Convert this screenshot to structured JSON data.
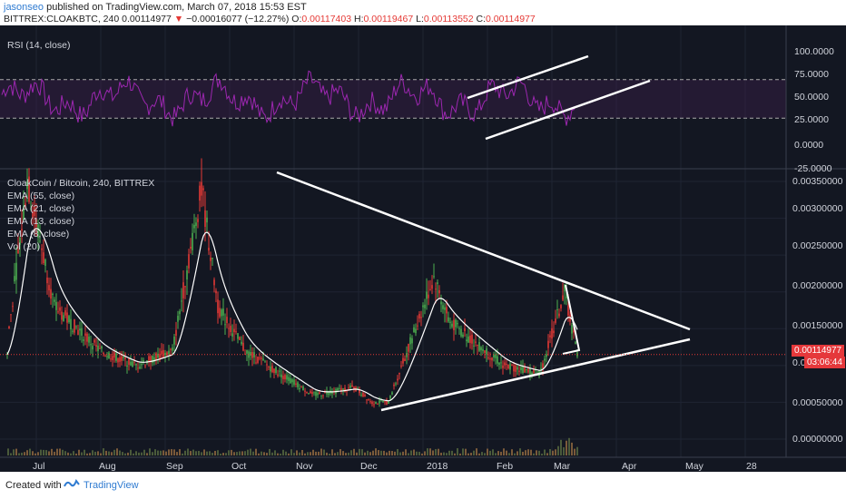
{
  "header": {
    "author": "jasonseo",
    "published_text": " published on TradingView.com, March 07, 2018 15:53 EST",
    "symbol": "BITTREX:CLOAKBTC, 240",
    "last": "0.00114977",
    "arrow": "▼",
    "change": "−0.00016077 (−12.27%)",
    "o_label": "O:",
    "o_val": "0.00117403",
    "h_label": "H:",
    "h_val": "0.00119467",
    "l_label": "L:",
    "l_val": "0.00113552",
    "c_label": "C:",
    "c_val": "0.00114977"
  },
  "rsi": {
    "label": "RSI (14, close)",
    "levels": [
      100,
      75,
      50,
      25,
      0,
      -25
    ],
    "tick_labels": [
      "100.0000",
      "75.0000",
      "50.0000",
      "25.0000",
      "0.0000",
      "-25.0000"
    ],
    "upper_band": 70,
    "lower_band": 30
  },
  "main": {
    "title": "CloakCoin / Bitcoin, 240, BITTREX",
    "legend": [
      "EMA (55, close)",
      "EMA (21, close)",
      "EMA (13, close)",
      "EMA (8, close)",
      "Vol (20)"
    ],
    "price_ticks": [
      "0.00350000",
      "0.00300000",
      "0.00250000",
      "0.00200000",
      "0.00150000",
      "0.00100000",
      "0.00050000",
      "0.00000000"
    ],
    "price_tick_values": [
      0.0035,
      0.003,
      0.0025,
      0.002,
      0.0015,
      0.001,
      0.0005,
      0.0
    ],
    "last_price_label": "0.00114977",
    "countdown_label": "03:06:44"
  },
  "x_labels": [
    "Jul",
    "Aug",
    "Sep",
    "Oct",
    "Nov",
    "Dec",
    "2018",
    "Feb",
    "Mar",
    "Apr",
    "May",
    "28"
  ],
  "colors": {
    "background": "#131722",
    "rsi_line": "#9c27b0",
    "bull": "#4caf50",
    "bear": "#e53935",
    "ema": "#ffffff",
    "trendline": "#ffffff",
    "price_line": "#e53935"
  },
  "chart_data": {
    "type": "candlestick",
    "title": "CloakCoin / Bitcoin, 240, BITTREX",
    "x_range": [
      "2018-07 (Jul)",
      "2018-05-28"
    ],
    "y_range": [
      0.0,
      0.0035
    ],
    "price_path_approx": [
      {
        "x": "Jul",
        "y": 0.0015
      },
      {
        "x": "early Jul",
        "y": 0.0035
      },
      {
        "x": "mid Jul",
        "y": 0.0018
      },
      {
        "x": "Aug",
        "y": 0.0012
      },
      {
        "x": "late Aug",
        "y": 0.001
      },
      {
        "x": "early Sep",
        "y": 0.0012
      },
      {
        "x": "mid Sep",
        "y": 0.0034
      },
      {
        "x": "late Sep",
        "y": 0.0018
      },
      {
        "x": "Oct",
        "y": 0.0012
      },
      {
        "x": "Nov",
        "y": 0.0006
      },
      {
        "x": "late Nov",
        "y": 0.0007
      },
      {
        "x": "Dec",
        "y": 0.0005
      },
      {
        "x": "mid Dec",
        "y": 0.0005
      },
      {
        "x": "late Dec",
        "y": 0.0022
      },
      {
        "x": "2018",
        "y": 0.0016
      },
      {
        "x": "Feb",
        "y": 0.001
      },
      {
        "x": "late Feb",
        "y": 0.0009
      },
      {
        "x": "early Mar",
        "y": 0.002
      },
      {
        "x": "Mar",
        "y": 0.00115
      }
    ],
    "last_price": 0.00114977,
    "rsi_series_note": "RSI oscillates between ~25 and ~85, ends near 50",
    "rsi_reference_levels": [
      70,
      30
    ]
  }
}
